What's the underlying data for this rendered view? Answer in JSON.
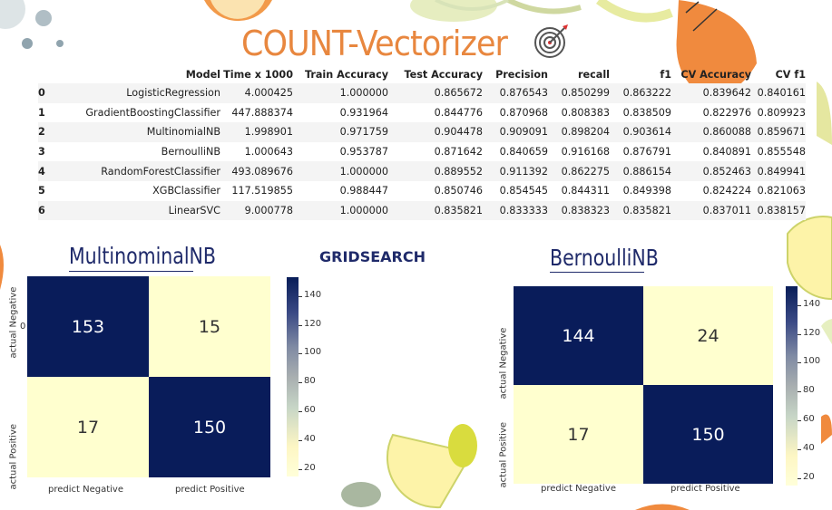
{
  "title": "COUNT-Vectorizer",
  "table": {
    "columns": [
      "",
      "Model",
      "Time x 1000",
      "Train Accuracy",
      "Test Accuracy",
      "Precision",
      "recall",
      "f1",
      "CV Accuracy",
      "CV f1"
    ],
    "rows": [
      [
        "0",
        "LogisticRegression",
        "4.000425",
        "1.000000",
        "0.865672",
        "0.876543",
        "0.850299",
        "0.863222",
        "0.839642",
        "0.840161"
      ],
      [
        "1",
        "GradientBoostingClassifier",
        "447.888374",
        "0.931964",
        "0.844776",
        "0.870968",
        "0.808383",
        "0.838509",
        "0.822976",
        "0.809923"
      ],
      [
        "2",
        "MultinomialNB",
        "1.998901",
        "0.971759",
        "0.904478",
        "0.909091",
        "0.898204",
        "0.903614",
        "0.860088",
        "0.859671"
      ],
      [
        "3",
        "BernoulliNB",
        "1.000643",
        "0.953787",
        "0.871642",
        "0.840659",
        "0.916168",
        "0.876791",
        "0.840891",
        "0.855548"
      ],
      [
        "4",
        "RandomForestClassifier",
        "493.089676",
        "1.000000",
        "0.889552",
        "0.911392",
        "0.862275",
        "0.886154",
        "0.852463",
        "0.849941"
      ],
      [
        "5",
        "XGBClassifier",
        "117.519855",
        "0.988447",
        "0.850746",
        "0.854545",
        "0.844311",
        "0.849398",
        "0.824224",
        "0.821063"
      ],
      [
        "6",
        "LinearSVC",
        "9.000778",
        "1.000000",
        "0.835821",
        "0.833333",
        "0.838323",
        "0.835821",
        "0.837011",
        "0.838157"
      ]
    ]
  },
  "gridsearch_label": "GRIDSEARCH",
  "matrices": [
    {
      "title": "MultinominalNB",
      "values": [
        "153",
        "15",
        "17",
        "150"
      ],
      "y_labels": [
        "actual Negative",
        "actual Positive"
      ],
      "x_labels": [
        "predict Negative",
        "predict Positive"
      ],
      "y_ticks": [
        "0",
        ""
      ],
      "colorbar_ticks": [
        "140",
        "120",
        "100",
        "80",
        "60",
        "40",
        "20"
      ]
    },
    {
      "title": "BernoulliNB",
      "values": [
        "144",
        "24",
        "17",
        "150"
      ],
      "y_labels": [
        "actual Negative",
        "actual Positive"
      ],
      "x_labels": [
        "predict Negative",
        "predict Positive"
      ],
      "colorbar_ticks": [
        "140",
        "120",
        "100",
        "80",
        "60",
        "40",
        "20"
      ]
    }
  ],
  "colors": {
    "title": "#e8873f",
    "dark_cell": "#091c5a",
    "light_cell": "#ffffcf",
    "heading": "#1f2a6a"
  }
}
